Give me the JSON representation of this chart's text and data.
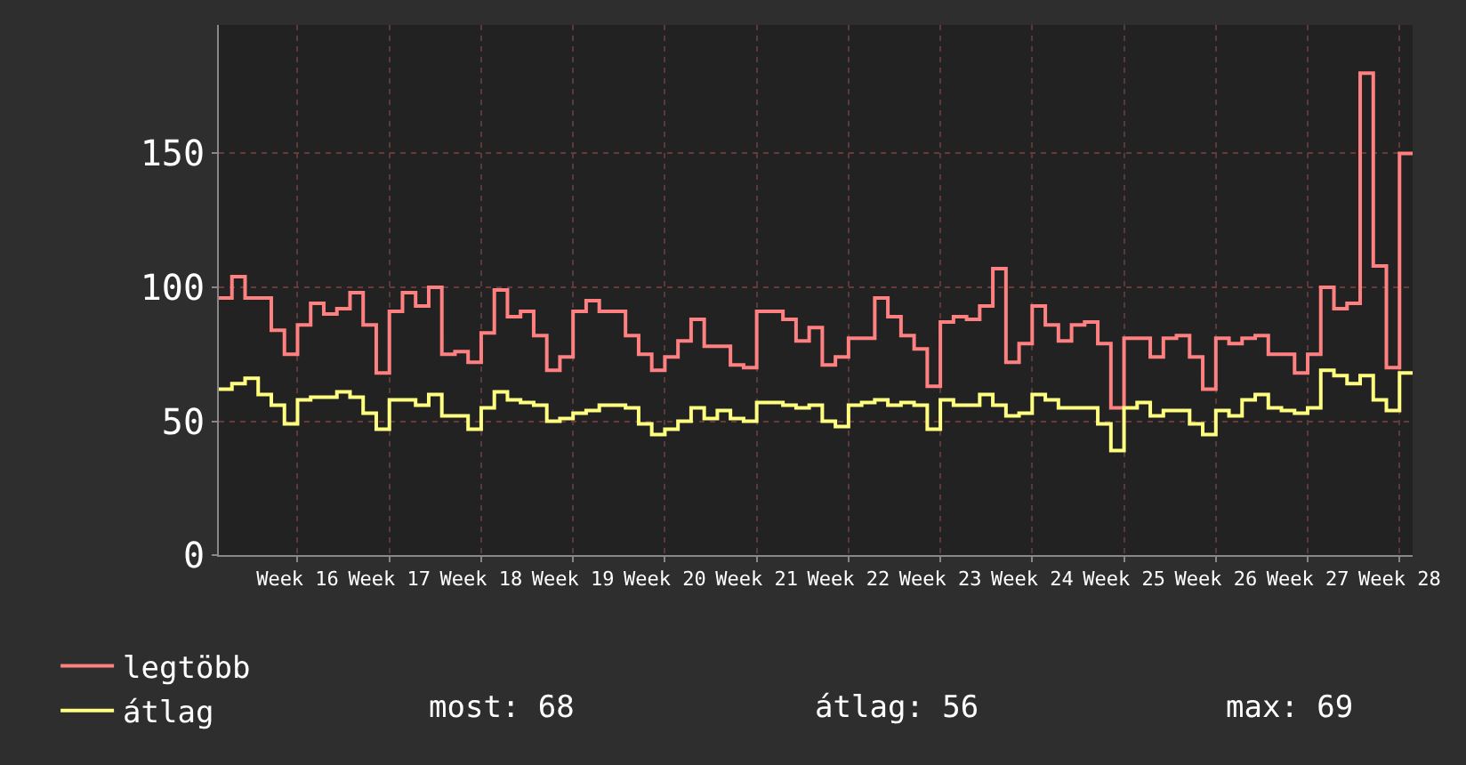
{
  "chart_data": {
    "type": "step",
    "categories": [
      null,
      null,
      null,
      null,
      null,
      null,
      "Week 16",
      null,
      null,
      null,
      null,
      null,
      null,
      "Week 17",
      null,
      null,
      null,
      null,
      null,
      null,
      "Week 18",
      null,
      null,
      null,
      null,
      null,
      null,
      "Week 19",
      null,
      null,
      null,
      null,
      null,
      null,
      "Week 20",
      null,
      null,
      null,
      null,
      null,
      null,
      "Week 21",
      null,
      null,
      null,
      null,
      null,
      null,
      "Week 22",
      null,
      null,
      null,
      null,
      null,
      null,
      "Week 23",
      null,
      null,
      null,
      null,
      null,
      null,
      "Week 24",
      null,
      null,
      null,
      null,
      null,
      null,
      "Week 25",
      null,
      null,
      null,
      null,
      null,
      null,
      "Week 26",
      null,
      null,
      null,
      null,
      null,
      null,
      "Week 27",
      null,
      null,
      null,
      null,
      null,
      null,
      "Week 28",
      null
    ],
    "series": [
      {
        "name": "legtöbb",
        "color": "#ff8080",
        "values": [
          96,
          104,
          96,
          96,
          84,
          75,
          86,
          94,
          90,
          92,
          98,
          86,
          68,
          91,
          98,
          93,
          100,
          75,
          76,
          72,
          83,
          99,
          89,
          91,
          82,
          69,
          74,
          91,
          95,
          91,
          91,
          82,
          75,
          69,
          74,
          80,
          88,
          78,
          78,
          71,
          70,
          91,
          91,
          88,
          80,
          85,
          71,
          74,
          81,
          81,
          96,
          89,
          82,
          77,
          63,
          87,
          89,
          88,
          93,
          107,
          72,
          79,
          93,
          86,
          80,
          86,
          87,
          79,
          55,
          81,
          81,
          74,
          81,
          82,
          74,
          62,
          81,
          79,
          81,
          82,
          75,
          75,
          68,
          75,
          100,
          92,
          94,
          180,
          108,
          70,
          150,
          150
        ]
      },
      {
        "name": "átlag",
        "color": "#ffff80",
        "values": [
          62,
          64,
          66,
          60,
          56,
          49,
          58,
          59,
          59,
          61,
          59,
          53,
          47,
          58,
          58,
          56,
          60,
          52,
          52,
          47,
          55,
          61,
          58,
          57,
          56,
          50,
          51,
          53,
          54,
          56,
          56,
          55,
          49,
          45,
          47,
          50,
          55,
          51,
          54,
          51,
          50,
          57,
          57,
          56,
          55,
          56,
          50,
          48,
          56,
          57,
          58,
          56,
          57,
          56,
          47,
          58,
          56,
          56,
          60,
          56,
          52,
          53,
          60,
          58,
          55,
          55,
          55,
          49,
          39,
          55,
          57,
          52,
          54,
          54,
          49,
          45,
          54,
          52,
          58,
          60,
          55,
          54,
          53,
          55,
          69,
          67,
          64,
          67,
          58,
          54,
          68,
          68
        ]
      }
    ],
    "ylim": [
      0,
      198
    ],
    "yticks": [
      0,
      50,
      100,
      150
    ],
    "grid": true,
    "legend": "bottom left",
    "marker": "none",
    "line_style": "solid",
    "annotations": [
      "most: 68",
      "átlag: 56",
      "max: 69"
    ]
  }
}
